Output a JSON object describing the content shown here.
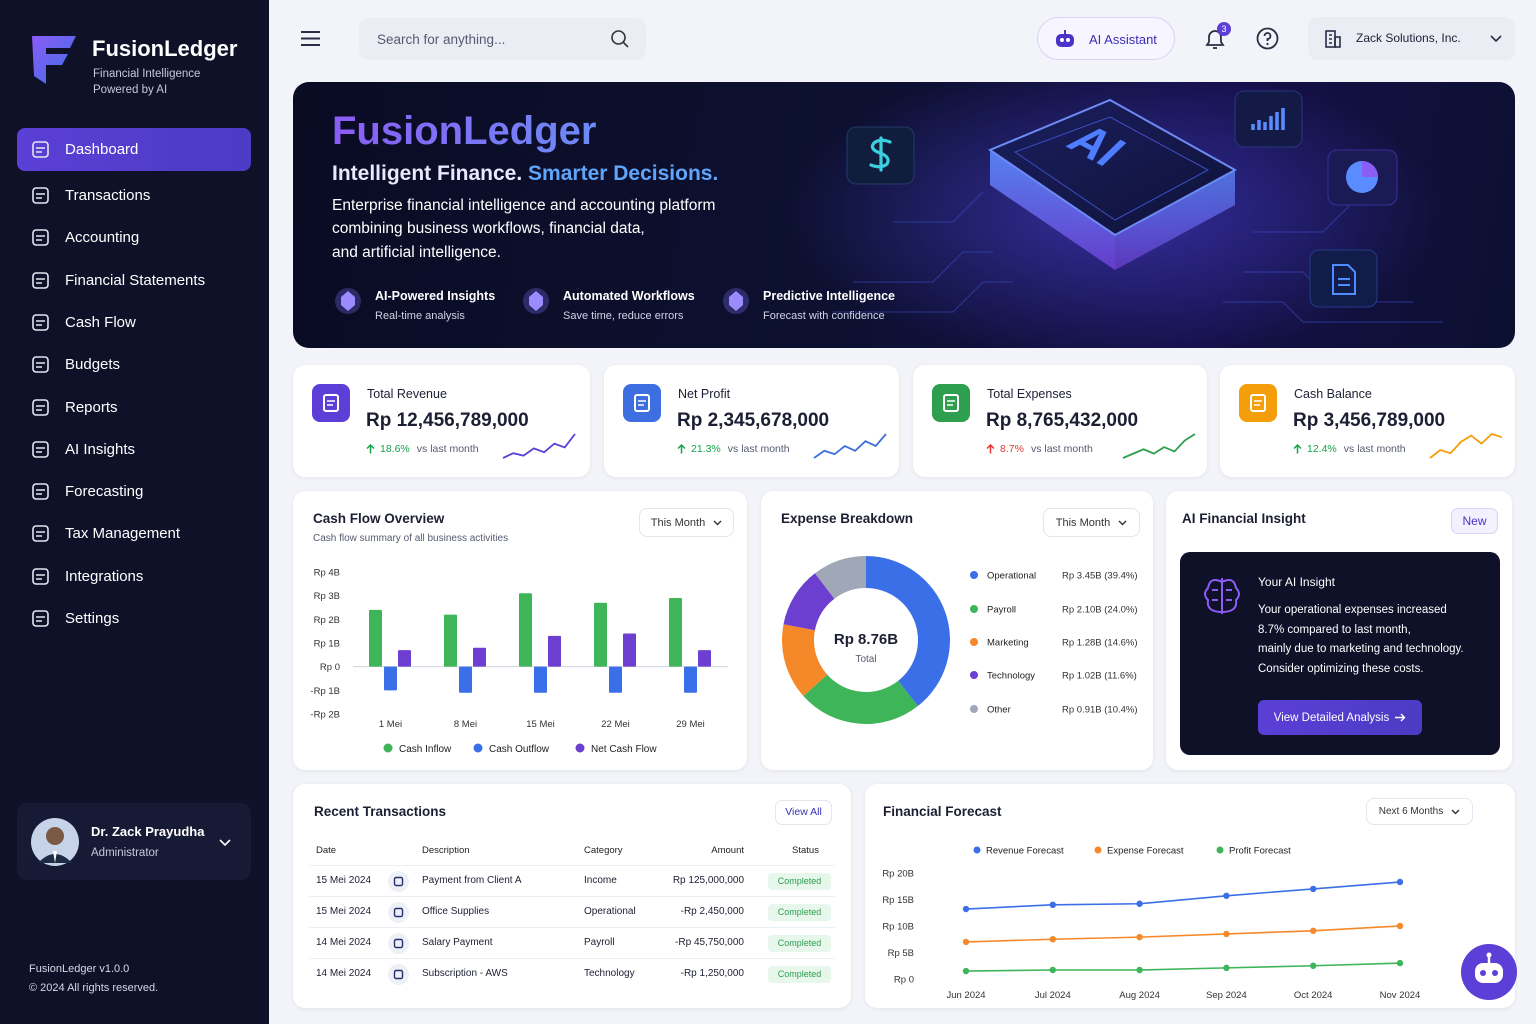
{
  "sidebar": {
    "brand": "FusionLedger",
    "tagline": [
      "Financial Intelligence",
      "Powered by AI"
    ],
    "nav": [
      "Dashboard",
      "Transactions",
      "Accounting",
      "Financial Statements",
      "Cash Flow",
      "Budgets",
      "Reports",
      "AI Insights",
      "Forecasting",
      "Tax Management",
      "Integrations",
      "Settings"
    ],
    "active": 0,
    "user": {
      "name": "Dr. Zack Prayudha",
      "role": "Administrator"
    },
    "footer": [
      "FusionLedger v1.0.0",
      "© 2024 All rights reserved."
    ]
  },
  "topbar": {
    "search": "Search for anything...",
    "assistant": "AI Assistant",
    "notifications": 3,
    "company": "Zack Solutions, Inc."
  },
  "hero": {
    "title": "FusionLedger",
    "tagline": [
      "Intelligent Finance.",
      "Smarter Decisions."
    ],
    "description": [
      "Enterprise financial intelligence and accounting platform",
      "combining business workflows, financial data,",
      "and artificial intelligence."
    ],
    "chip": "AI",
    "features": [
      {
        "title": "AI-Powered Insights",
        "subtitle": "Real-time analysis"
      },
      {
        "title": "Automated Workflows",
        "subtitle": "Save time, reduce errors"
      },
      {
        "title": "Predictive Intelligence",
        "subtitle": "Forecast with confidence"
      }
    ]
  },
  "kpis": [
    {
      "label": "Total Revenue",
      "value": "Rp 12,456,789,000",
      "change": "18.6%",
      "note": "vs last month",
      "direction": "up",
      "color": "#5b3fd6",
      "change_color": "#16a34a",
      "trend": [
        2,
        3,
        2.5,
        4,
        3.2,
        5,
        4.2,
        7
      ]
    },
    {
      "label": "Net Profit",
      "value": "Rp 2,345,678,000",
      "change": "21.3%",
      "note": "vs last month",
      "direction": "up",
      "color": "#3d6fe0",
      "change_color": "#16a34a",
      "trend": [
        2,
        3.5,
        2.8,
        4.5,
        3.5,
        5.5,
        4.5,
        7
      ]
    },
    {
      "label": "Total Expenses",
      "value": "Rp 8,765,432,000",
      "change": "8.7%",
      "note": "vs last month",
      "direction": "up",
      "color": "#2e9e4f",
      "change_color": "#e53935",
      "trend": [
        1.5,
        2.5,
        3.5,
        2.5,
        4,
        3,
        5.5,
        7
      ]
    },
    {
      "label": "Cash Balance",
      "value": "Rp 3,456,789,000",
      "change": "12.4%",
      "note": "vs last month",
      "direction": "up",
      "color": "#f59e0b",
      "change_color": "#16a34a",
      "trend": [
        2,
        3,
        2.6,
        4,
        4.8,
        3.8,
        5,
        4.6
      ]
    }
  ],
  "cash_flow": {
    "type": "bar",
    "title": "Cash Flow Overview",
    "subtitle": "Cash flow summary of all business activities",
    "period": "This Month",
    "categories": [
      "1 Mei",
      "8 Mei",
      "15 Mei",
      "22 Mei",
      "29 Mei"
    ],
    "series": [
      {
        "name": "Cash Inflow",
        "color": "#3fb55a",
        "values": [
          2.4,
          2.2,
          3.1,
          2.7,
          2.9
        ]
      },
      {
        "name": "Cash Outflow",
        "color": "#3b6fe8",
        "values": [
          -1.0,
          -1.1,
          -1.1,
          -1.1,
          -1.1
        ]
      },
      {
        "name": "Net Cash Flow",
        "color": "#6c3fd1",
        "values": [
          0.7,
          0.8,
          1.3,
          1.4,
          0.7
        ]
      }
    ],
    "ylim": [
      -2,
      4
    ],
    "yticks": [
      {
        "value": 4,
        "label": "Rp 4B"
      },
      {
        "value": 3,
        "label": "Rp 3B"
      },
      {
        "value": 2,
        "label": "Rp 2B"
      },
      {
        "value": 1,
        "label": "Rp 1B"
      },
      {
        "value": 0,
        "label": "Rp 0"
      },
      {
        "value": -1,
        "label": "-Rp 1B"
      },
      {
        "value": -2,
        "label": "-Rp 2B"
      }
    ],
    "grid": false,
    "legend": "bottom"
  },
  "expenses": {
    "type": "donut",
    "title": "Expense Breakdown",
    "period": "This Month",
    "total": "Rp 8.76B",
    "total_label": "Total",
    "categories": [
      "Operational",
      "Payroll",
      "Marketing",
      "Technology",
      "Other"
    ],
    "values": [
      39.4,
      24.0,
      14.6,
      11.6,
      10.4
    ],
    "value_labels": [
      "Rp 3.45B (39.4%)",
      "Rp 2.10B (24.0%)",
      "Rp 1.28B (14.6%)",
      "Rp 1.02B (11.6%)",
      "Rp 0.91B (10.4%)"
    ],
    "colors": [
      "#3b6fe8",
      "#3fb55a",
      "#f5892a",
      "#6c3fd1",
      "#a0a8b8"
    ]
  },
  "insight": {
    "title": "AI Financial Insight",
    "badge": "New",
    "heading": "Your AI Insight",
    "text": [
      "Your operational expenses increased",
      "8.7% compared to last month,",
      "mainly due to marketing and technology.",
      "Consider optimizing these costs."
    ],
    "button": "View Detailed Analysis"
  },
  "transactions": {
    "title": "Recent Transactions",
    "action": "View All",
    "columns": [
      "Date",
      "Description",
      "Category",
      "Amount",
      "Status"
    ],
    "rows": [
      [
        "15 Mei 2024",
        "Payment from Client A",
        "Income",
        "Rp 125,000,000",
        "Completed"
      ],
      [
        "15 Mei 2024",
        "Office Supplies",
        "Operational",
        "-Rp 2,450,000",
        "Completed"
      ],
      [
        "14 Mei 2024",
        "Salary Payment",
        "Payroll",
        "-Rp 45,750,000",
        "Completed"
      ],
      [
        "14 Mei 2024",
        "Subscription - AWS",
        "Technology",
        "-Rp 1,250,000",
        "Completed"
      ]
    ]
  },
  "forecast": {
    "type": "line",
    "title": "Financial Forecast",
    "period": "Next 6 Months",
    "categories": [
      "Jun 2024",
      "Jul 2024",
      "Aug 2024",
      "Sep 2024",
      "Oct 2024",
      "Nov 2024"
    ],
    "series": [
      {
        "name": "Revenue Forecast",
        "color": "#3b6fe8",
        "values": [
          13.2,
          14.0,
          14.2,
          15.7,
          17.0,
          18.3
        ]
      },
      {
        "name": "Expense Forecast",
        "color": "#f5892a",
        "values": [
          7.0,
          7.5,
          7.9,
          8.5,
          9.1,
          10.0
        ]
      },
      {
        "name": "Profit Forecast",
        "color": "#3fb55a",
        "values": [
          1.5,
          1.7,
          1.7,
          2.1,
          2.5,
          3.0
        ]
      }
    ],
    "ylim": [
      0,
      20
    ],
    "yticks": [
      {
        "value": 20,
        "label": "Rp 20B"
      },
      {
        "value": 15,
        "label": "Rp 15B"
      },
      {
        "value": 10,
        "label": "Rp 10B"
      },
      {
        "value": 5,
        "label": "Rp 5B"
      },
      {
        "value": 0,
        "label": "Rp 0"
      }
    ],
    "grid": false
  }
}
